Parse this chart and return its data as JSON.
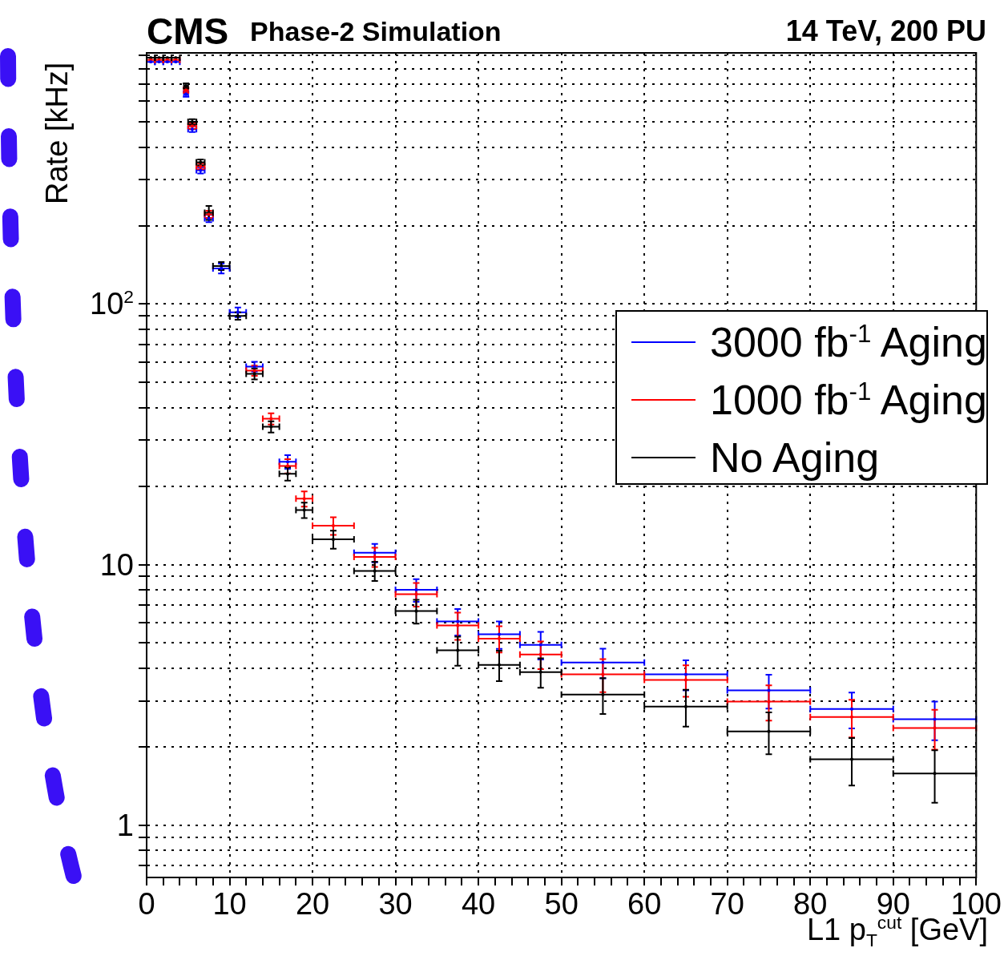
{
  "chart_data": {
    "type": "scatter",
    "title": "CMS",
    "subtitle": "Phase-2 Simulation",
    "annotations": [
      "14 TeV, 200 PU"
    ],
    "xlabel": "L1 p$_{T}$$^{cut}$ [GeV]",
    "ylabel": "Rate [kHz]",
    "x": [
      0.5,
      1.5,
      2.5,
      3.5,
      4.75,
      5.5,
      6.5,
      7.5,
      9,
      11,
      13,
      15,
      17,
      19,
      22.5,
      27.5,
      32.5,
      37.5,
      42.5,
      47.5,
      55,
      65,
      75,
      85,
      95
    ],
    "series": [
      {
        "name": "3000 fb$^{-1}$ Aging",
        "color": "#0000ff",
        "values": [
          850,
          850,
          850,
          850,
          640,
          469,
          326,
          213,
          137,
          93,
          57.5,
          null,
          24.8,
          null,
          null,
          11.1,
          8.0,
          6.05,
          5.4,
          4.92,
          4.21,
          3.79,
          3.29,
          2.79,
          2.55
        ],
        "errors": [
          null,
          null,
          null,
          null,
          16,
          12,
          9,
          7,
          6,
          4,
          2.5,
          null,
          1.5,
          null,
          null,
          0.9,
          0.8,
          0.7,
          0.65,
          0.6,
          0.55,
          0.5,
          0.49,
          0.44,
          0.43
        ],
        "xerrors": [
          0.5,
          0.5,
          0.5,
          0.5,
          0.25,
          0.5,
          0.5,
          0.5,
          1,
          1,
          1,
          null,
          1,
          null,
          null,
          2.5,
          2.5,
          2.5,
          2.5,
          2.5,
          5,
          5,
          5,
          5,
          5
        ]
      },
      {
        "name": "1000 fb$^{-1}$ Aging",
        "color": "#ff0000",
        "values": [
          865,
          865,
          865,
          865,
          663,
          482,
          338,
          221,
          null,
          null,
          55.5,
          36.3,
          23.9,
          17.9,
          14.1,
          10.7,
          7.7,
          5.84,
          5.2,
          4.52,
          3.79,
          3.61,
          2.98,
          2.6,
          2.36
        ],
        "errors": [
          null,
          null,
          null,
          null,
          16,
          12,
          9,
          7,
          null,
          null,
          2.5,
          1.8,
          1.5,
          1.2,
          1.1,
          0.9,
          0.8,
          0.7,
          0.6,
          0.55,
          0.55,
          0.5,
          0.46,
          0.43,
          0.41
        ],
        "xerrors": [
          0.5,
          0.5,
          0.5,
          0.5,
          0.25,
          0.5,
          0.5,
          0.5,
          null,
          null,
          1,
          1,
          1,
          1,
          2.5,
          2.5,
          2.5,
          2.5,
          2.5,
          2.5,
          5,
          5,
          5,
          5,
          5
        ]
      },
      {
        "name": "No Aging",
        "color": "#000000",
        "values": [
          881,
          881,
          881,
          881,
          687,
          500,
          350,
          224,
          140,
          90,
          54,
          33.8,
          22.3,
          16.2,
          12.5,
          9.45,
          6.63,
          4.69,
          4.12,
          3.87,
          3.17,
          2.85,
          2.29,
          1.79,
          1.58
        ],
        "errors": [
          null,
          null,
          null,
          null,
          16,
          12,
          9,
          14,
          5,
          3,
          2.6,
          1.7,
          1.3,
          1.1,
          1.0,
          0.8,
          0.7,
          0.6,
          0.55,
          0.5,
          0.5,
          0.46,
          0.42,
          0.37,
          0.36
        ],
        "xerrors": [
          0.5,
          0.5,
          0.5,
          0.5,
          0.25,
          0.5,
          0.5,
          0.5,
          1,
          1,
          1,
          1,
          1,
          1,
          2.5,
          2.5,
          2.5,
          2.5,
          2.5,
          2.5,
          5,
          5,
          5,
          5,
          5
        ]
      }
    ],
    "log": "y",
    "xlim": [
      0,
      100
    ],
    "ylim": [
      0.63,
      920
    ],
    "xticks": [
      0,
      {
        "value": 2,
        "label": null
      },
      {
        "value": 4,
        "label": null
      },
      {
        "value": 6,
        "label": null
      },
      {
        "value": 8,
        "label": null
      },
      10,
      {
        "value": 12,
        "label": null
      },
      {
        "value": 14,
        "label": null
      },
      {
        "value": 16,
        "label": null
      },
      {
        "value": 18,
        "label": null
      },
      20,
      {
        "value": 22,
        "label": null
      },
      {
        "value": 24,
        "label": null
      },
      {
        "value": 26,
        "label": null
      },
      {
        "value": 28,
        "label": null
      },
      30,
      {
        "value": 32,
        "label": null
      },
      {
        "value": 34,
        "label": null
      },
      {
        "value": 36,
        "label": null
      },
      {
        "value": 38,
        "label": null
      },
      40,
      {
        "value": 42,
        "label": null
      },
      {
        "value": 44,
        "label": null
      },
      {
        "value": 46,
        "label": null
      },
      {
        "value": 48,
        "label": null
      },
      50,
      {
        "value": 52,
        "label": null
      },
      {
        "value": 54,
        "label": null
      },
      {
        "value": 56,
        "label": null
      },
      {
        "value": 58,
        "label": null
      },
      60,
      {
        "value": 62,
        "label": null
      },
      {
        "value": 64,
        "label": null
      },
      {
        "value": 66,
        "label": null
      },
      {
        "value": 68,
        "label": null
      },
      70,
      {
        "value": 72,
        "label": null
      },
      {
        "value": 74,
        "label": null
      },
      {
        "value": 76,
        "label": null
      },
      {
        "value": 78,
        "label": null
      },
      80,
      {
        "value": 82,
        "label": null
      },
      {
        "value": 84,
        "label": null
      },
      {
        "value": 86,
        "label": null
      },
      {
        "value": 88,
        "label": null
      },
      90,
      {
        "value": 92,
        "label": null
      },
      {
        "value": 94,
        "label": null
      },
      {
        "value": 96,
        "label": null
      },
      {
        "value": 98,
        "label": null
      },
      100
    ],
    "yticks": [
      {
        "value": 0.7,
        "label": null
      },
      {
        "value": 0.8,
        "label": null
      },
      {
        "value": 0.9,
        "label": null
      },
      1,
      {
        "value": 2,
        "label": null
      },
      {
        "value": 3,
        "label": null
      },
      {
        "value": 4,
        "label": null
      },
      {
        "value": 5,
        "label": null
      },
      {
        "value": 6,
        "label": null
      },
      {
        "value": 7,
        "label": null
      },
      {
        "value": 8,
        "label": null
      },
      {
        "value": 9,
        "label": null
      },
      10,
      {
        "value": 20,
        "label": null
      },
      {
        "value": 30,
        "label": null
      },
      {
        "value": 40,
        "label": null
      },
      {
        "value": 50,
        "label": null
      },
      {
        "value": 60,
        "label": null
      },
      {
        "value": 70,
        "label": null
      },
      {
        "value": 80,
        "label": null
      },
      {
        "value": 90,
        "label": null
      },
      {
        "value": 100,
        "label": "10$^{2}$"
      },
      {
        "value": 200,
        "label": null
      },
      {
        "value": 300,
        "label": null
      },
      {
        "value": 400,
        "label": null
      },
      {
        "value": 500,
        "label": null
      },
      {
        "value": 600,
        "label": null
      },
      {
        "value": 700,
        "label": null
      },
      {
        "value": 800,
        "label": null
      },
      {
        "value": 900,
        "label": null
      }
    ],
    "grid": true,
    "legend": "right",
    "marker": "square"
  }
}
